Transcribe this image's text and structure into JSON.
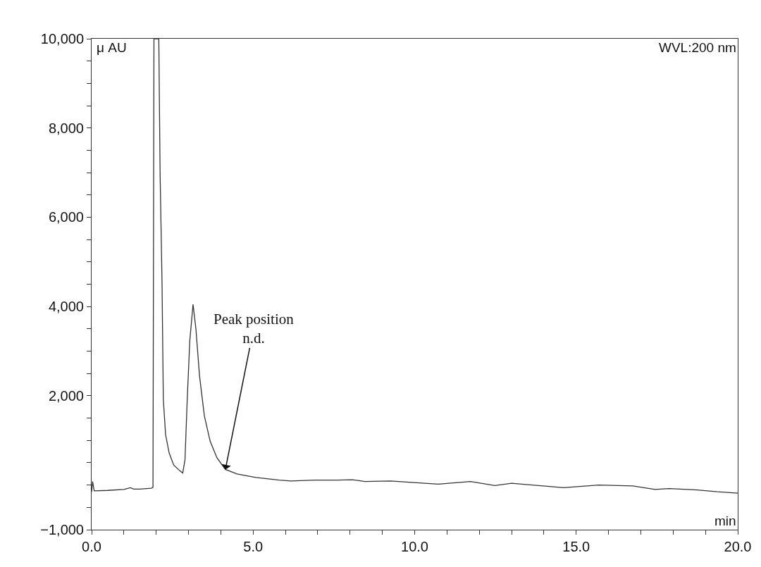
{
  "chart_data": {
    "type": "line",
    "xlabel": "min",
    "ylabel": "μ AU",
    "annotations": [
      "WVL:200 nm",
      {
        "text": "Peak position\nn.d.",
        "x": 4.14,
        "y": 345
      }
    ],
    "series": [
      {
        "color": "#333333",
        "x": [
          0,
          0.03,
          0.08,
          0.5,
          1.0,
          1.2,
          1.3,
          1.5,
          1.85,
          1.9,
          1.93,
          2.08,
          2.12,
          2.18,
          2.22,
          2.29,
          2.4,
          2.54,
          2.73,
          2.82,
          2.89,
          2.96,
          3.04,
          3.14,
          3.23,
          3.34,
          3.49,
          3.67,
          3.88,
          4.14,
          4.5,
          5.08,
          5.81,
          6.17,
          6.9,
          7.6,
          8.07,
          8.46,
          9.25,
          10.73,
          11.73,
          12.48,
          13.0,
          14.61,
          15.7,
          16.75,
          17.44,
          17.88,
          18.75,
          19.36,
          20.0
        ],
        "values": [
          -150,
          80,
          -130,
          -120,
          -100,
          -60,
          -90,
          -90,
          -70,
          -50,
          10000,
          10000,
          7000,
          4540,
          1920,
          1130,
          720,
          450,
          320,
          270,
          560,
          1920,
          3240,
          4050,
          3490,
          2450,
          1550,
          980,
          610,
          350,
          250,
          170,
          110,
          90,
          110,
          110,
          120,
          80,
          90,
          20,
          80,
          -10,
          40,
          -60,
          0,
          -20,
          -100,
          -80,
          -110,
          -150,
          -180
        ]
      }
    ],
    "xlim": [
      0,
      20
    ],
    "ylim": [
      -1000,
      10000
    ],
    "xticks": [
      {
        "value": 0,
        "label": "0.0"
      },
      {
        "value": 1,
        "label": null
      },
      {
        "value": 2,
        "label": null
      },
      {
        "value": 3,
        "label": null
      },
      {
        "value": 4,
        "label": null
      },
      {
        "value": 5,
        "label": "5.0"
      },
      {
        "value": 6,
        "label": null
      },
      {
        "value": 7,
        "label": null
      },
      {
        "value": 8,
        "label": null
      },
      {
        "value": 9,
        "label": null
      },
      {
        "value": 10,
        "label": "10.0"
      },
      {
        "value": 11,
        "label": null
      },
      {
        "value": 12,
        "label": null
      },
      {
        "value": 13,
        "label": null
      },
      {
        "value": 14,
        "label": null
      },
      {
        "value": 15,
        "label": "15.0"
      },
      {
        "value": 16,
        "label": null
      },
      {
        "value": 17,
        "label": null
      },
      {
        "value": 18,
        "label": null
      },
      {
        "value": 19,
        "label": null
      },
      {
        "value": 20,
        "label": "20.0"
      }
    ],
    "yticks": [
      {
        "value": -1000,
        "label": "−1,000"
      },
      {
        "value": -500,
        "label": null
      },
      {
        "value": 0,
        "label": null
      },
      {
        "value": 500,
        "label": null
      },
      {
        "value": 1000,
        "label": null
      },
      {
        "value": 1500,
        "label": null
      },
      {
        "value": 2000,
        "label": "2,000"
      },
      {
        "value": 2500,
        "label": null
      },
      {
        "value": 3000,
        "label": null
      },
      {
        "value": 3500,
        "label": null
      },
      {
        "value": 4000,
        "label": "4,000"
      },
      {
        "value": 4500,
        "label": null
      },
      {
        "value": 5000,
        "label": null
      },
      {
        "value": 5500,
        "label": null
      },
      {
        "value": 6000,
        "label": "6,000"
      },
      {
        "value": 6500,
        "label": null
      },
      {
        "value": 7000,
        "label": null
      },
      {
        "value": 7500,
        "label": null
      },
      {
        "value": 8000,
        "label": "8,000"
      },
      {
        "value": 8500,
        "label": null
      },
      {
        "value": 9000,
        "label": null
      },
      {
        "value": 9500,
        "label": null
      },
      {
        "value": 10000,
        "label": "10,000"
      }
    ],
    "marker": "none",
    "line_style": "solid"
  }
}
